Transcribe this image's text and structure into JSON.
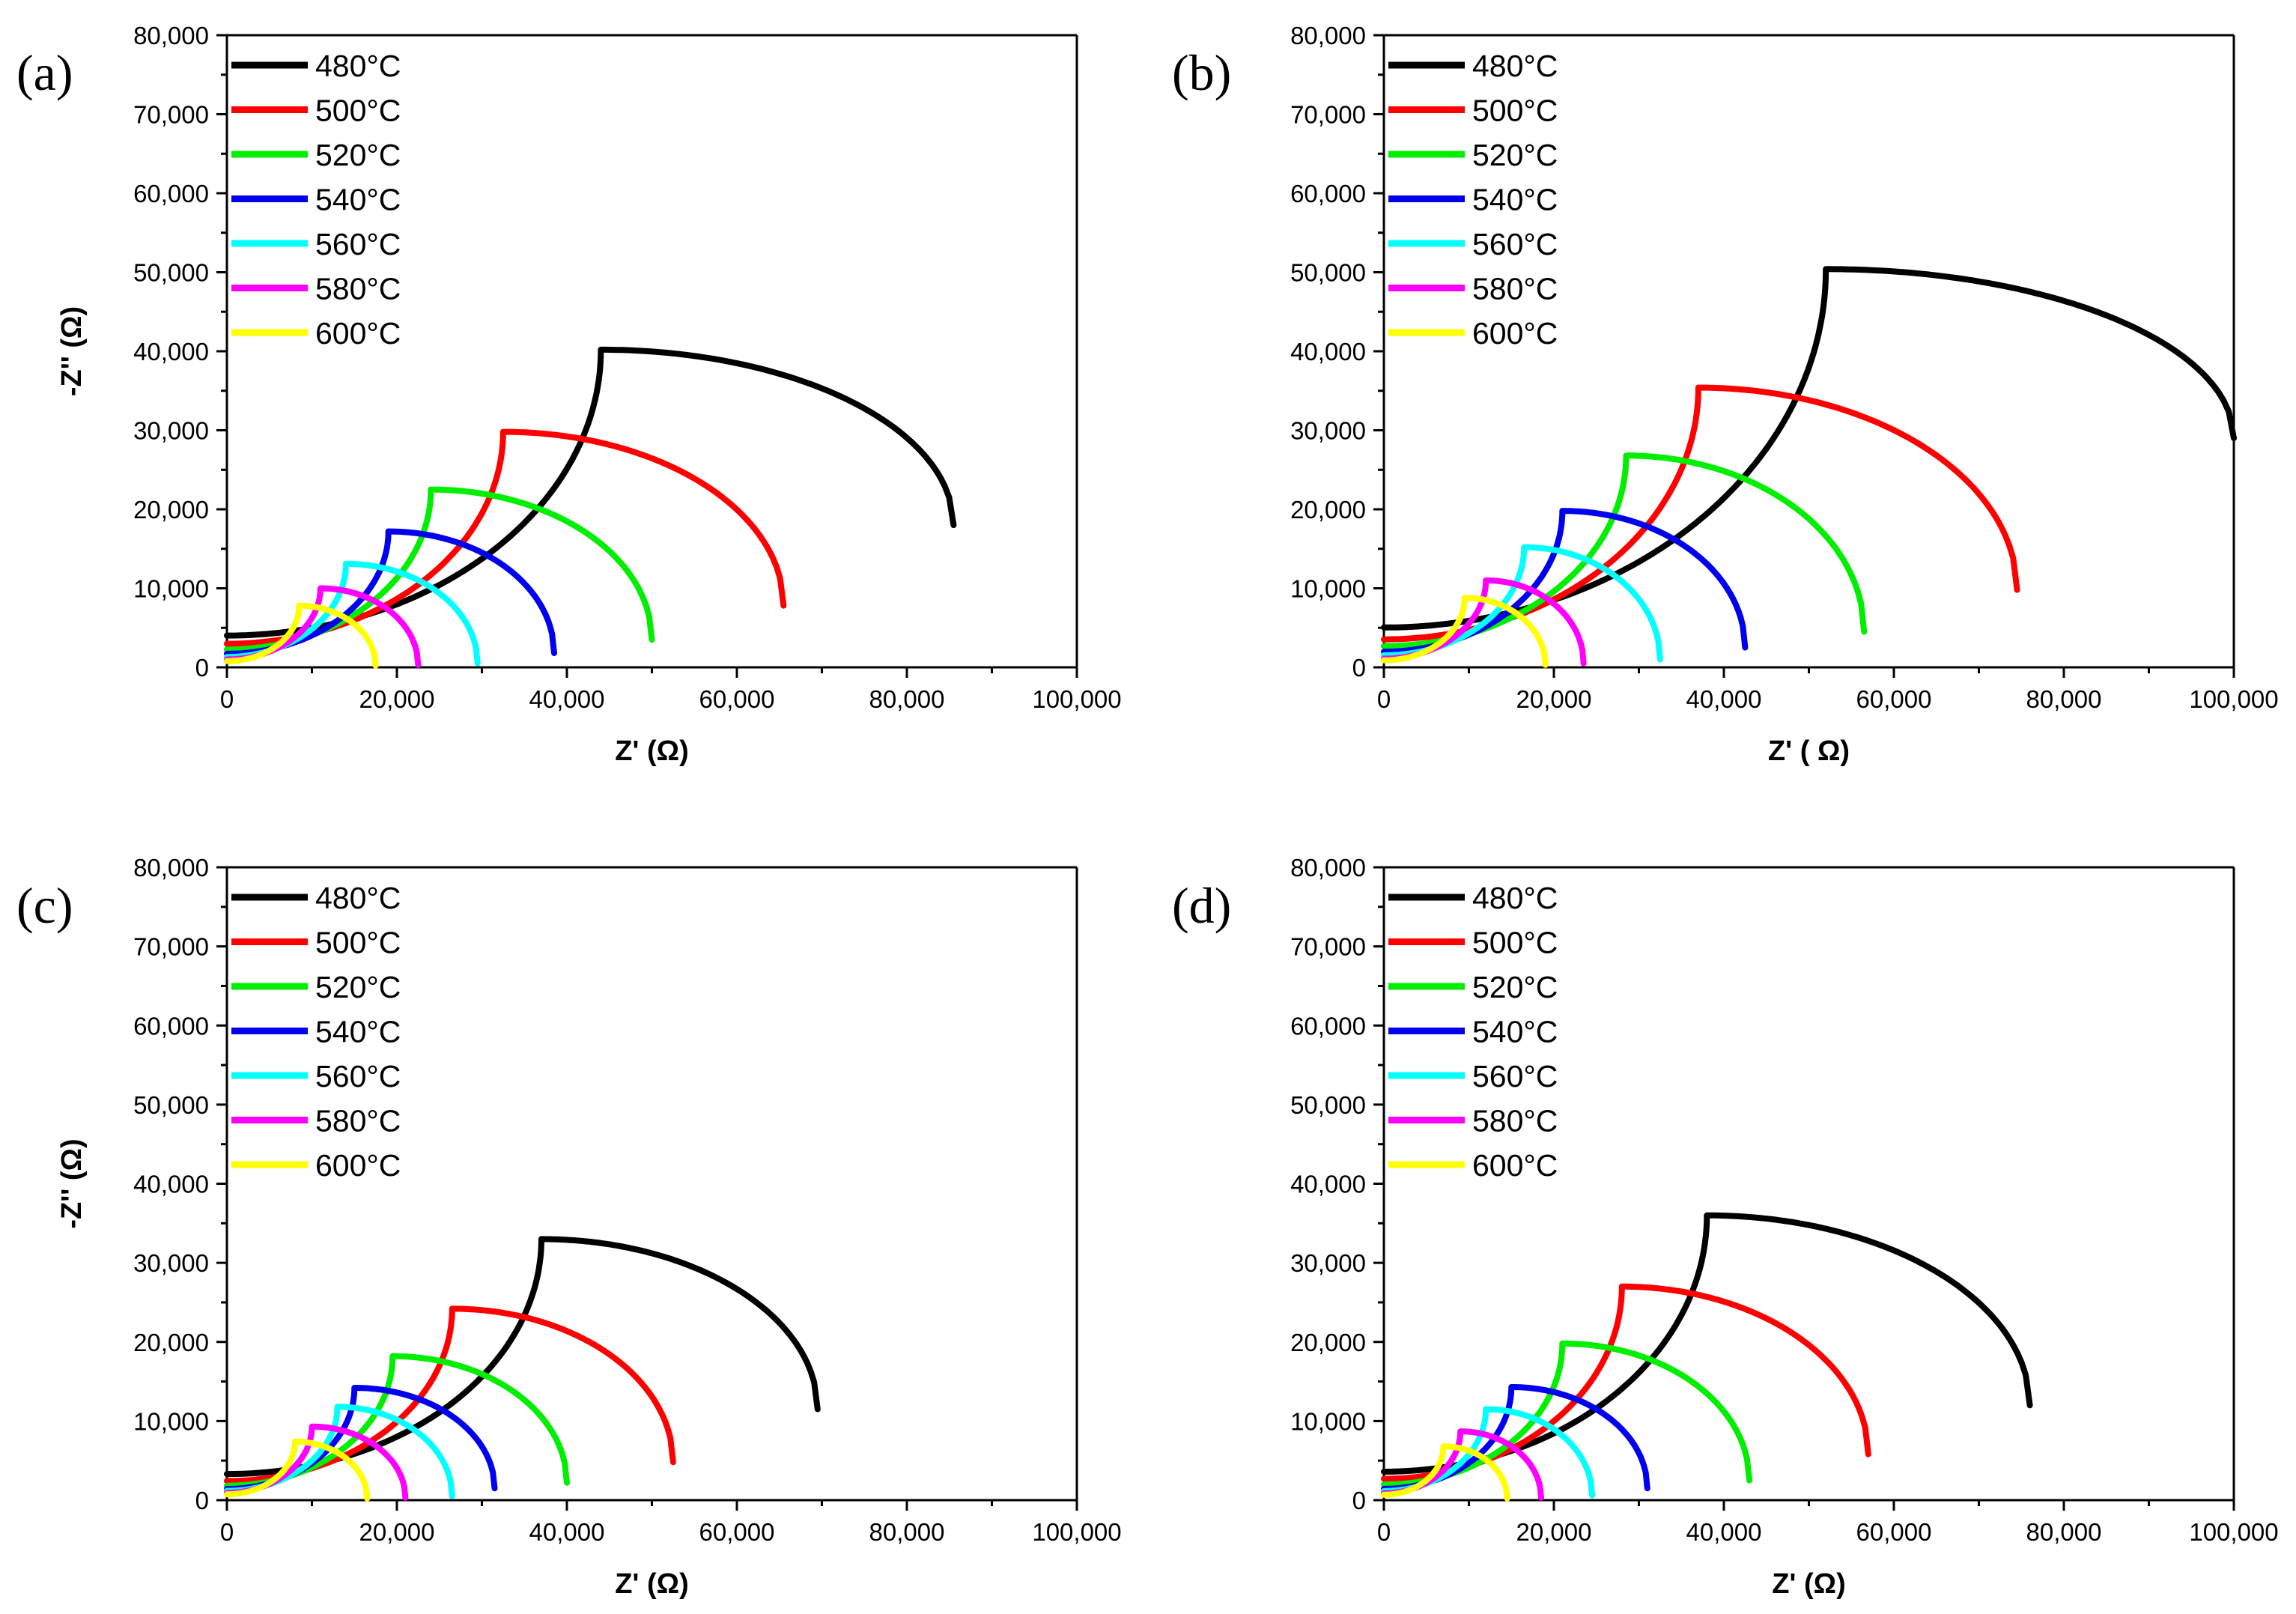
{
  "figure": "Nyquist impedance plots, four panels",
  "chart_data": [
    {
      "type": "line",
      "panel_label": "(a)",
      "xlabel": "Z' (Ω)",
      "ylabel": "-Z'' (Ω)",
      "xlim": [
        0,
        100000
      ],
      "ylim": [
        0,
        80000
      ],
      "x_ticks": [
        "0",
        "20,000",
        "40,000",
        "60,000",
        "80,000",
        "100,000"
      ],
      "y_ticks": [
        "0",
        "10,000",
        "20,000",
        "30,000",
        "40,000",
        "50,000",
        "60,000",
        "70,000",
        "80,000"
      ],
      "legend_position": "top-left",
      "series": [
        {
          "name": "480°C",
          "color": "#000000",
          "peak_x": 44000,
          "peak_y": 40200,
          "end_x": 85500,
          "end_y": 18000
        },
        {
          "name": "500°C",
          "color": "#ff0000",
          "peak_x": 32500,
          "peak_y": 29800,
          "end_x": 65500,
          "end_y": 7800
        },
        {
          "name": "520°C",
          "color": "#00ee00",
          "peak_x": 24000,
          "peak_y": 22500,
          "end_x": 50000,
          "end_y": 3500
        },
        {
          "name": "540°C",
          "color": "#0000ee",
          "peak_x": 19000,
          "peak_y": 17200,
          "end_x": 38500,
          "end_y": 1800
        },
        {
          "name": "560°C",
          "color": "#00ffff",
          "peak_x": 14000,
          "peak_y": 13100,
          "end_x": 29500,
          "end_y": 500
        },
        {
          "name": "580°C",
          "color": "#ff00ff",
          "peak_x": 11000,
          "peak_y": 10000,
          "end_x": 22500,
          "end_y": 300
        },
        {
          "name": "600°C",
          "color": "#ffff00",
          "peak_x": 8500,
          "peak_y": 7800,
          "end_x": 17500,
          "end_y": 200
        }
      ]
    },
    {
      "type": "line",
      "panel_label": "(b)",
      "xlabel": "Z' ( Ω)",
      "ylabel": "",
      "xlim": [
        0,
        100000
      ],
      "ylim": [
        0,
        80000
      ],
      "x_ticks": [
        "0",
        "20,000",
        "40,000",
        "60,000",
        "80,000",
        "100,000"
      ],
      "y_ticks": [
        "0",
        "10,000",
        "20,000",
        "30,000",
        "40,000",
        "50,000",
        "60,000",
        "70,000",
        "80,000"
      ],
      "legend_position": "top-left",
      "series": [
        {
          "name": "480°C",
          "color": "#000000",
          "peak_x": 52000,
          "peak_y": 50400,
          "end_x": 100000,
          "end_y": 29000
        },
        {
          "name": "500°C",
          "color": "#ff0000",
          "peak_x": 37000,
          "peak_y": 35400,
          "end_x": 74500,
          "end_y": 9800
        },
        {
          "name": "520°C",
          "color": "#00ee00",
          "peak_x": 28500,
          "peak_y": 26800,
          "end_x": 56500,
          "end_y": 4500
        },
        {
          "name": "540°C",
          "color": "#0000ee",
          "peak_x": 21000,
          "peak_y": 19800,
          "end_x": 42500,
          "end_y": 2500
        },
        {
          "name": "560°C",
          "color": "#00ffff",
          "peak_x": 16500,
          "peak_y": 15200,
          "end_x": 32500,
          "end_y": 1000
        },
        {
          "name": "580°C",
          "color": "#ff00ff",
          "peak_x": 12000,
          "peak_y": 11000,
          "end_x": 23500,
          "end_y": 500
        },
        {
          "name": "600°C",
          "color": "#ffff00",
          "peak_x": 9500,
          "peak_y": 8800,
          "end_x": 19000,
          "end_y": 300
        }
      ]
    },
    {
      "type": "line",
      "panel_label": "(c)",
      "xlabel": "Z' (Ω)",
      "ylabel": "-Z'' (Ω)",
      "xlim": [
        0,
        100000
      ],
      "ylim": [
        0,
        80000
      ],
      "x_ticks": [
        "0",
        "20,000",
        "40,000",
        "60,000",
        "80,000",
        "100,000"
      ],
      "y_ticks": [
        "0",
        "10,000",
        "20,000",
        "30,000",
        "40,000",
        "50,000",
        "60,000",
        "70,000",
        "80,000"
      ],
      "legend_position": "top-left",
      "series": [
        {
          "name": "480°C",
          "color": "#000000",
          "peak_x": 37000,
          "peak_y": 33000,
          "end_x": 69500,
          "end_y": 11500
        },
        {
          "name": "500°C",
          "color": "#ff0000",
          "peak_x": 26500,
          "peak_y": 24200,
          "end_x": 52500,
          "end_y": 4800
        },
        {
          "name": "520°C",
          "color": "#00ee00",
          "peak_x": 19500,
          "peak_y": 18200,
          "end_x": 40000,
          "end_y": 2200
        },
        {
          "name": "540°C",
          "color": "#0000ee",
          "peak_x": 15000,
          "peak_y": 14200,
          "end_x": 31500,
          "end_y": 1500
        },
        {
          "name": "560°C",
          "color": "#00ffff",
          "peak_x": 13000,
          "peak_y": 11800,
          "end_x": 26500,
          "end_y": 500
        },
        {
          "name": "580°C",
          "color": "#ff00ff",
          "peak_x": 10000,
          "peak_y": 9300,
          "end_x": 21000,
          "end_y": 300
        },
        {
          "name": "600°C",
          "color": "#ffff00",
          "peak_x": 8000,
          "peak_y": 7400,
          "end_x": 16500,
          "end_y": 200
        }
      ]
    },
    {
      "type": "line",
      "panel_label": "(d)",
      "xlabel": "Z' (Ω)",
      "ylabel": "",
      "xlim": [
        0,
        100000
      ],
      "ylim": [
        0,
        80000
      ],
      "x_ticks": [
        "0",
        "20,000",
        "40,000",
        "60,000",
        "80,000",
        "100,000"
      ],
      "y_ticks": [
        "0",
        "10,000",
        "20,000",
        "30,000",
        "40,000",
        "50,000",
        "60,000",
        "70,000",
        "80,000"
      ],
      "legend_position": "top-left",
      "series": [
        {
          "name": "480°C",
          "color": "#000000",
          "peak_x": 38000,
          "peak_y": 36000,
          "end_x": 76000,
          "end_y": 12000
        },
        {
          "name": "500°C",
          "color": "#ff0000",
          "peak_x": 28000,
          "peak_y": 27000,
          "end_x": 57000,
          "end_y": 5800
        },
        {
          "name": "520°C",
          "color": "#00ee00",
          "peak_x": 21000,
          "peak_y": 19800,
          "end_x": 43000,
          "end_y": 2500
        },
        {
          "name": "540°C",
          "color": "#0000ee",
          "peak_x": 15000,
          "peak_y": 14300,
          "end_x": 31000,
          "end_y": 1500
        },
        {
          "name": "560°C",
          "color": "#00ffff",
          "peak_x": 12000,
          "peak_y": 11500,
          "end_x": 24500,
          "end_y": 600
        },
        {
          "name": "580°C",
          "color": "#ff00ff",
          "peak_x": 9000,
          "peak_y": 8700,
          "end_x": 18500,
          "end_y": 300
        },
        {
          "name": "600°C",
          "color": "#ffff00",
          "peak_x": 7000,
          "peak_y": 6800,
          "end_x": 14500,
          "end_y": 200
        }
      ]
    }
  ]
}
